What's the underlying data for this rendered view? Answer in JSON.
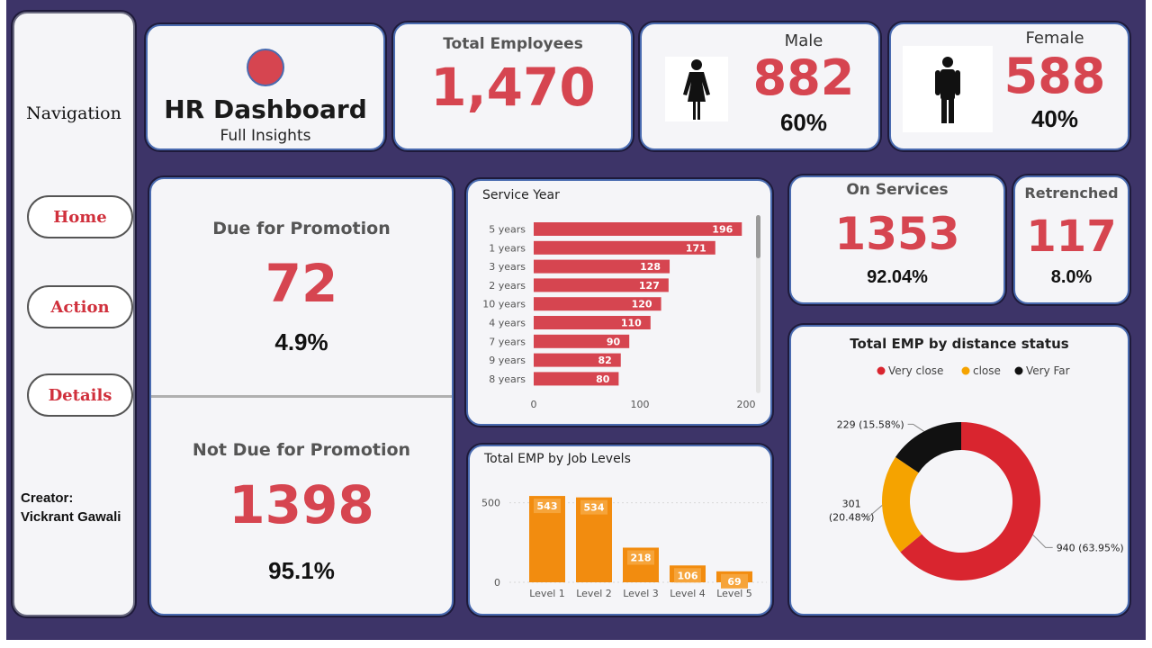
{
  "nav": {
    "title": "Navigation",
    "buttons": [
      {
        "label": "Home"
      },
      {
        "label": "Action"
      },
      {
        "label": "Details"
      }
    ],
    "creator_label": "Creator:",
    "creator_name": "Vickrant Gawali"
  },
  "header": {
    "title": "HR Dashboard",
    "subtitle": "Full Insights"
  },
  "kpis": {
    "total_employees": {
      "label": "Total Employees",
      "value": "1,470"
    },
    "male": {
      "label": "Male",
      "value": "882",
      "percent": "60%"
    },
    "female": {
      "label": "Female",
      "value": "588",
      "percent": "40%"
    },
    "on_services": {
      "label": "On Services",
      "value": "1353",
      "percent": "92.04%"
    },
    "retrenched": {
      "label": "Retrenched",
      "value": "117",
      "percent": "8.0%"
    }
  },
  "promotion": {
    "due": {
      "label": "Due for Promotion",
      "value": "72",
      "percent": "4.9%"
    },
    "not_due": {
      "label": "Not Due for Promotion",
      "value": "1398",
      "percent": "95.1%"
    }
  },
  "colors": {
    "accent_red": "#d64550",
    "bar_red": "#d64550",
    "bar_orange": "#f28c0f",
    "donut_red": "#d9252f",
    "donut_orange": "#f5a300",
    "donut_black": "#111111",
    "background": "#3d3468"
  },
  "chart_data": [
    {
      "type": "bar",
      "orientation": "horizontal",
      "title": "Service Year",
      "categories": [
        "5 years",
        "1 years",
        "3 years",
        "2 years",
        "10 years",
        "4 years",
        "7 years",
        "9 years",
        "8 years"
      ],
      "values": [
        196,
        171,
        128,
        127,
        120,
        110,
        90,
        82,
        80
      ],
      "xlim": [
        0,
        200
      ],
      "ticks": [
        0,
        100,
        200
      ]
    },
    {
      "type": "bar",
      "title": "Total EMP by Job Levels",
      "categories": [
        "Level 1",
        "Level 2",
        "Level 3",
        "Level 4",
        "Level 5"
      ],
      "values": [
        543,
        534,
        218,
        106,
        69
      ],
      "ylim": [
        0,
        600
      ],
      "ticks": [
        0,
        500
      ]
    },
    {
      "type": "pie",
      "title": "Total EMP by distance status",
      "legend": [
        "Very close",
        "close",
        "Very Far"
      ],
      "legend_placement": "top",
      "slices": [
        {
          "name": "Very close",
          "value": 940,
          "label": "940 (63.95%)"
        },
        {
          "name": "close",
          "value": 301,
          "label_line1": "301",
          "label_line2": "(20.48%)"
        },
        {
          "name": "Very Far",
          "value": 229,
          "label": "229 (15.58%)"
        }
      ]
    }
  ]
}
